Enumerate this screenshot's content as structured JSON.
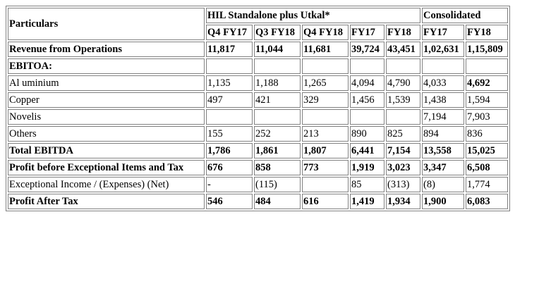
{
  "table": {
    "header": {
      "particulars": "Particulars",
      "group_hil": "HIL Standalone plus Utkal*",
      "group_consolidated": "Consolidated",
      "columns": [
        "Q4 FY17",
        "Q3 FY18",
        "Q4 FY18",
        "FY17",
        "FY18",
        "FY17",
        "FY18"
      ]
    },
    "rows": [
      {
        "label": "Revenue from Operations",
        "bold": true,
        "values": [
          "11,817",
          "11,044",
          "11,681",
          "39,724",
          "43,451",
          "1,02,631",
          "1,15,809"
        ],
        "bold_cells": [
          true,
          true,
          true,
          true,
          true,
          true,
          true
        ]
      },
      {
        "label": "EBITOA:",
        "bold": true,
        "values": [
          "",
          "",
          "",
          "",
          "",
          "",
          ""
        ],
        "bold_cells": [
          false,
          false,
          false,
          false,
          false,
          false,
          false
        ]
      },
      {
        "label": "Al uminium",
        "bold": false,
        "values": [
          "1,135",
          "1,188",
          "1,265",
          "4,094",
          "4,790",
          "4,033",
          "4,692"
        ],
        "bold_cells": [
          false,
          false,
          false,
          false,
          false,
          false,
          true
        ]
      },
      {
        "label": "Copper",
        "bold": false,
        "values": [
          "497",
          "421",
          "329",
          "1,456",
          "1,539",
          "1,438",
          "1,594"
        ],
        "bold_cells": [
          false,
          false,
          false,
          false,
          false,
          false,
          false
        ]
      },
      {
        "label": "Novelis",
        "bold": false,
        "values": [
          "",
          "",
          "",
          "",
          "",
          "7,194",
          "7,903"
        ],
        "bold_cells": [
          false,
          false,
          false,
          false,
          false,
          false,
          false
        ]
      },
      {
        "label": "Others",
        "bold": false,
        "values": [
          "155",
          "252",
          "213",
          "890",
          "825",
          "894",
          "836"
        ],
        "bold_cells": [
          false,
          false,
          false,
          false,
          false,
          false,
          false
        ]
      },
      {
        "label": "Total EBITDA",
        "bold": true,
        "values": [
          "1,786",
          "1,861",
          "1,807",
          "6,441",
          "7,154",
          "13,558",
          "15,025"
        ],
        "bold_cells": [
          true,
          true,
          true,
          true,
          true,
          true,
          true
        ]
      },
      {
        "label": "Profit before Exceptional Items and Tax",
        "bold": true,
        "values": [
          "676",
          "858",
          "773",
          "1,919",
          "3,023",
          "3,347",
          "6,508"
        ],
        "bold_cells": [
          true,
          true,
          true,
          true,
          true,
          true,
          true
        ]
      },
      {
        "label": "Exceptional Income / (Expenses) (Net)",
        "bold": false,
        "values": [
          "-",
          "(115)",
          "",
          "85",
          "(313)",
          "(8)",
          "1,774"
        ],
        "bold_cells": [
          false,
          false,
          false,
          false,
          false,
          false,
          false
        ]
      },
      {
        "label": "Profit After Tax",
        "bold": true,
        "values": [
          "546",
          "484",
          "616",
          "1,419",
          "1,934",
          "1,900",
          "6,083"
        ],
        "bold_cells": [
          true,
          true,
          true,
          true,
          true,
          true,
          true
        ]
      }
    ]
  }
}
